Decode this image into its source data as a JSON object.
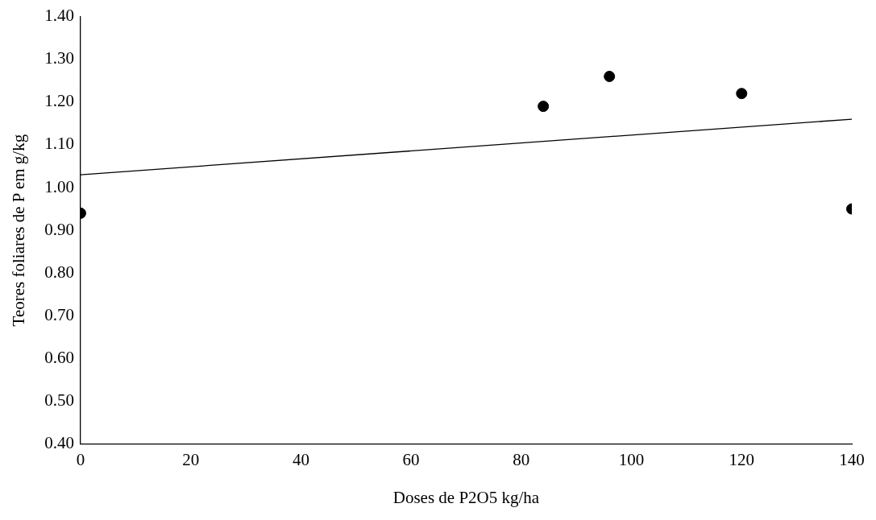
{
  "chart_data": {
    "type": "scatter",
    "xlabel": "Doses de P2O5 kg/ha",
    "ylabel": "Teores foliares de P em g/kg",
    "xlim": [
      0,
      140
    ],
    "xticks": [
      0,
      20,
      40,
      60,
      80,
      100,
      120,
      140
    ],
    "ylim": [
      0.4,
      1.4
    ],
    "yticks": [
      {
        "value": 0.4,
        "label": "0.40"
      },
      {
        "value": 0.5,
        "label": "0.50"
      },
      {
        "value": 0.6,
        "label": "0.60"
      },
      {
        "value": 0.7,
        "label": "0.70"
      },
      {
        "value": 0.8,
        "label": "0.80"
      },
      {
        "value": 0.9,
        "label": "0.90"
      },
      {
        "value": 1.0,
        "label": "1.00"
      },
      {
        "value": 1.1,
        "label": "1.10"
      },
      {
        "value": 1.2,
        "label": "1.20"
      },
      {
        "value": 1.3,
        "label": "1.30"
      },
      {
        "value": 1.4,
        "label": "1.40"
      }
    ],
    "grid": false,
    "legend": false,
    "marker": "circle",
    "series": [
      {
        "color": "#000000",
        "x": [
          0,
          84,
          96,
          120,
          140
        ],
        "values": [
          0.94,
          1.19,
          1.26,
          1.22,
          0.95
        ]
      },
      {
        "type": "line",
        "color": "#000000",
        "marker": "none",
        "x": [
          0,
          140
        ],
        "values": [
          1.03,
          1.16
        ]
      }
    ]
  }
}
